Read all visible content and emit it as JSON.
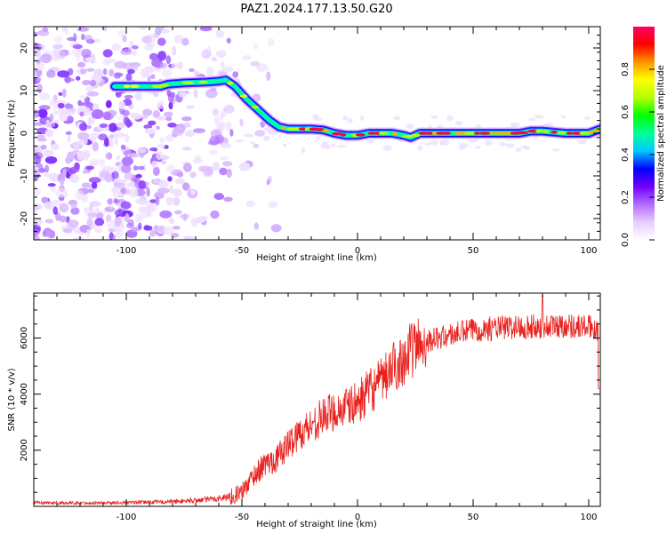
{
  "figure_title": "PAZ1.2024.177.13.50.G20",
  "chart_data": [
    {
      "type": "heatmap",
      "name": "spectrogram",
      "xlabel": "Height of straight line (km)",
      "ylabel": "Frequency (Hz)",
      "xlim": [
        -140,
        105
      ],
      "ylim": [
        -25,
        25
      ],
      "xticks": [
        -100,
        -50,
        0,
        50,
        100
      ],
      "yticks": [
        -20,
        -10,
        0,
        10,
        20
      ],
      "colorbar": {
        "label": "Normalized spectral amplitude",
        "range": [
          0,
          1
        ],
        "ticks": [
          0.0,
          0.2,
          0.4,
          0.6,
          0.8
        ],
        "colormap": [
          "#ffffff",
          "#e8ccff",
          "#b36bff",
          "#7000ff",
          "#0000ff",
          "#00c8ff",
          "#00ff9a",
          "#00ff00",
          "#b4ff00",
          "#ffff00",
          "#ff9600",
          "#ff0000",
          "#ff0064"
        ]
      },
      "signal_track": {
        "height_km": [
          -105,
          -98,
          -88,
          -85,
          -82,
          -75,
          -65,
          -60,
          -57,
          -53,
          -48,
          -43,
          -38,
          -34,
          -30,
          -25,
          -20,
          -15,
          -10,
          -5,
          0,
          5,
          10,
          15,
          20,
          23,
          27,
          30,
          35,
          40,
          45,
          50,
          60,
          70,
          75,
          80,
          90,
          100,
          105
        ],
        "frequency_hz": [
          11,
          11,
          11,
          11,
          11.5,
          11.8,
          12,
          12.2,
          12.5,
          11,
          8,
          5.5,
          3,
          1.5,
          1,
          1,
          1,
          0.8,
          0,
          -0.5,
          -0.5,
          0,
          0,
          0,
          -0.5,
          -1,
          0,
          0,
          0,
          0,
          0,
          0,
          0,
          0,
          0.5,
          0.5,
          0,
          0,
          1
        ]
      },
      "noise_region_km": [
        -140,
        -55
      ]
    },
    {
      "type": "line",
      "name": "snr",
      "xlabel": "Height of straight line (km)",
      "ylabel": "SNR (10 * v/v)",
      "xlim": [
        -140,
        105
      ],
      "ylim": [
        0,
        7600
      ],
      "xticks": [
        -100,
        -50,
        0,
        50,
        100
      ],
      "yticks": [
        2000,
        4000,
        6000
      ],
      "color": "#e8211d",
      "envelope": {
        "x": [
          -140,
          -120,
          -100,
          -80,
          -70,
          -60,
          -55,
          -50,
          -45,
          -40,
          -35,
          -30,
          -25,
          -20,
          -15,
          -10,
          -5,
          0,
          5,
          10,
          15,
          20,
          25,
          30,
          35,
          40,
          45,
          50,
          60,
          70,
          80,
          90,
          100,
          105
        ],
        "y": [
          130,
          120,
          130,
          170,
          210,
          280,
          350,
          500,
          1100,
          1500,
          1700,
          2200,
          2600,
          2900,
          3200,
          3400,
          3500,
          3700,
          4100,
          4400,
          4900,
          5300,
          5700,
          5900,
          6000,
          6100,
          6200,
          6300,
          6350,
          6400,
          6400,
          6450,
          6400,
          6300
        ]
      },
      "peak": {
        "x": 80,
        "y": 7500
      }
    }
  ]
}
